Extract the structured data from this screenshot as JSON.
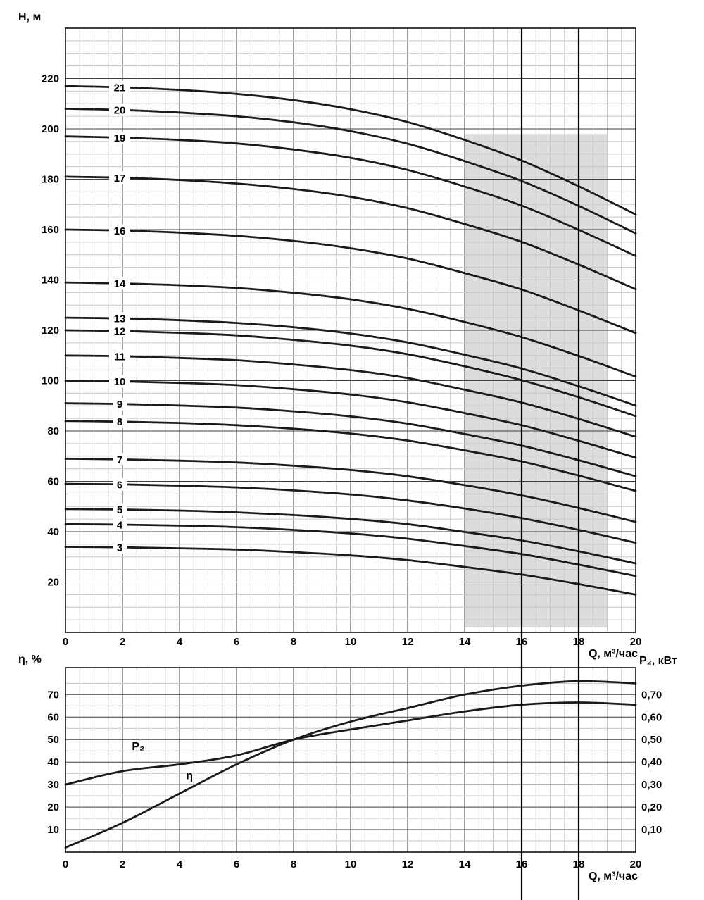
{
  "figure": {
    "background": "#ffffff",
    "curve_color": "#1a1a1a",
    "grid_minor_color": "#c6c6c6",
    "grid_major_color": "#3f3f3f",
    "border_color": "#000000",
    "shade_color": "#dcdcdc",
    "text_color": "#000000"
  },
  "chart_data": [
    {
      "type": "line",
      "name": "pump-head-curves",
      "title": "",
      "ylabel": "Н, м",
      "xlabel": "Q, м³/час",
      "xlim": [
        0,
        20
      ],
      "ylim": [
        0,
        240
      ],
      "x_major_step": 2,
      "x_minor_step": 0.5,
      "y_major_step": 20,
      "y_minor_step": 5,
      "x_ticks": [
        0,
        2,
        4,
        6,
        8,
        10,
        12,
        14,
        16,
        18,
        20
      ],
      "y_ticks": [
        20,
        40,
        60,
        80,
        100,
        120,
        140,
        160,
        180,
        200,
        220
      ],
      "x": [
        0,
        2,
        4,
        6,
        8,
        10,
        12,
        14,
        16,
        18,
        20
      ],
      "curve_label_q": 1.9,
      "shaded_region": {
        "x0": 14,
        "x1": 19,
        "y0": 2,
        "y1": 198
      },
      "reference_lines_x": [
        16,
        18
      ],
      "series": [
        {
          "name": "21",
          "values": [
            217,
            216.5,
            215.5,
            213.9,
            211.4,
            207.8,
            202.7,
            195.6,
            187.4,
            177.2,
            166
          ]
        },
        {
          "name": "20",
          "values": [
            208,
            207.5,
            206.5,
            205,
            202.6,
            199.1,
            194.1,
            187.2,
            179.3,
            169.4,
            158.5
          ]
        },
        {
          "name": "19",
          "values": [
            197,
            196.5,
            195.6,
            194.2,
            191.8,
            188.5,
            183.7,
            177.1,
            169.5,
            159.9,
            149.5
          ]
        },
        {
          "name": "17",
          "values": [
            181,
            180.6,
            179.7,
            178.3,
            176.1,
            173,
            168.5,
            162.2,
            155.1,
            146.1,
            136.3
          ]
        },
        {
          "name": "16",
          "values": [
            160,
            159.6,
            158.8,
            157.5,
            155.5,
            152.6,
            148.5,
            142.7,
            136.2,
            127.9,
            118.9
          ]
        },
        {
          "name": "14",
          "values": [
            139,
            138.6,
            137.9,
            136.8,
            134.9,
            132.3,
            128.5,
            123.3,
            117.3,
            109.8,
            101.6
          ]
        },
        {
          "name": "13",
          "values": [
            125,
            124.7,
            124,
            122.9,
            121.2,
            118.7,
            115.2,
            110.3,
            104.8,
            97.8,
            90.1
          ]
        },
        {
          "name": "12",
          "values": [
            120,
            119.7,
            119,
            118,
            116.2,
            113.9,
            110.5,
            105.7,
            100.2,
            93.4,
            85.9
          ]
        },
        {
          "name": "11",
          "values": [
            110,
            109.7,
            109,
            108.1,
            106.4,
            104.2,
            101,
            96.4,
            91.3,
            84.8,
            77.7
          ]
        },
        {
          "name": "10",
          "values": [
            100,
            99.7,
            99.1,
            98.2,
            96.6,
            94.5,
            91.4,
            87.1,
            82.3,
            76.1,
            69.4
          ]
        },
        {
          "name": "9",
          "values": [
            91,
            90.7,
            90.1,
            89.3,
            87.8,
            85.8,
            82.9,
            78.8,
            74.2,
            68.4,
            62
          ]
        },
        {
          "name": "8",
          "values": [
            84,
            83.7,
            83.2,
            82.3,
            80.9,
            79,
            76.2,
            72.3,
            67.9,
            62.3,
            56.2
          ]
        },
        {
          "name": "7",
          "values": [
            69,
            68.7,
            68.2,
            67.5,
            66.2,
            64.5,
            62,
            58.5,
            54.4,
            49.4,
            43.9
          ]
        },
        {
          "name": "6",
          "values": [
            59,
            58.8,
            58.3,
            57.6,
            56.4,
            54.8,
            52.4,
            49.2,
            45.4,
            40.7,
            35.6
          ]
        },
        {
          "name": "5",
          "values": [
            49,
            48.8,
            48.4,
            47.7,
            46.6,
            45.1,
            43,
            39.9,
            36.5,
            32.2,
            27.4
          ]
        },
        {
          "name": "4",
          "values": [
            43,
            42.8,
            42.4,
            41.8,
            40.7,
            39.3,
            37.2,
            34.3,
            31.1,
            26.9,
            22.4
          ]
        },
        {
          "name": "3",
          "values": [
            34,
            33.8,
            33.4,
            32.9,
            31.9,
            30.6,
            28.7,
            26,
            23,
            19.2,
            15
          ]
        }
      ]
    },
    {
      "type": "line",
      "name": "efficiency-and-power-curves",
      "title": "",
      "ylabel_left": "η, %",
      "ylabel_right": "P₂, кВт",
      "xlabel": "Q, м³/час",
      "xlim": [
        0,
        20
      ],
      "ylim_left": [
        0,
        82
      ],
      "ylim_right": [
        0,
        0.82
      ],
      "x_major_step": 2,
      "x_minor_step": 0.5,
      "y_major_step": 10,
      "y_minor_step": 5,
      "x_ticks": [
        0,
        2,
        4,
        6,
        8,
        10,
        12,
        14,
        16,
        18,
        20
      ],
      "y_ticks_left": [
        10,
        20,
        30,
        40,
        50,
        60,
        70
      ],
      "y_tick_labels_right": [
        "0,10",
        "0,20",
        "0,30",
        "0,40",
        "0,50",
        "0,60",
        "0,70"
      ],
      "x": [
        0,
        2,
        4,
        6,
        8,
        10,
        12,
        14,
        16,
        18,
        20
      ],
      "reference_lines_x": [
        16,
        18
      ],
      "series": [
        {
          "name": "η",
          "axis": "left",
          "values": [
            2,
            13,
            26,
            39,
            50,
            58,
            64,
            70,
            74,
            76,
            75
          ],
          "label_pos": {
            "q": 4.35,
            "v_left_units": 34
          }
        },
        {
          "name": "P₂",
          "axis": "right",
          "values": [
            0.3,
            0.36,
            0.39,
            0.43,
            0.5,
            0.545,
            0.585,
            0.625,
            0.655,
            0.665,
            0.655
          ],
          "label_pos": {
            "q": 2.55,
            "v_left_units": 47
          }
        }
      ]
    }
  ]
}
